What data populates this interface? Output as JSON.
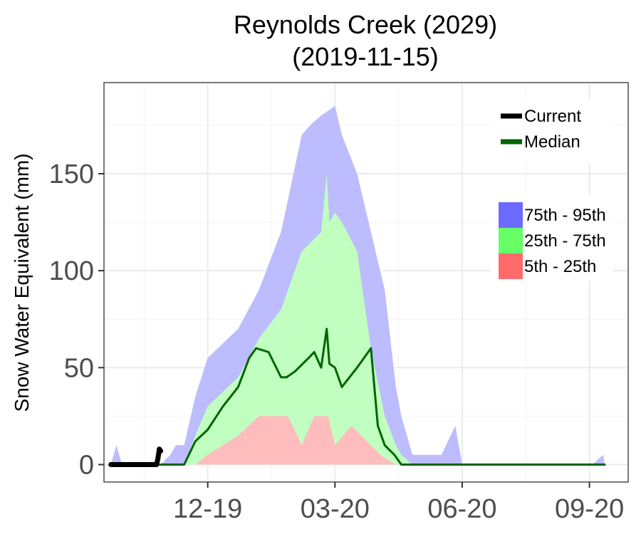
{
  "chart_data": {
    "type": "area",
    "title": "Reynolds Creek (2029)",
    "subtitle": "(2019-11-15)",
    "ylabel": "Snow Water Equivalent (mm)",
    "xlabel": "",
    "x_type": "date",
    "xlim": [
      "2019-10-05",
      "2020-10-18"
    ],
    "ylim": [
      -9,
      197
    ],
    "grid": true,
    "legend_position": "top-right",
    "x_ticks": [
      {
        "date": "2019-12-19",
        "label": "12-19"
      },
      {
        "date": "2020-03-20",
        "label": "03-20"
      },
      {
        "date": "2020-06-20",
        "label": "06-20"
      },
      {
        "date": "2020-09-20",
        "label": "09-20"
      }
    ],
    "y_ticks": [
      0,
      50,
      100,
      150
    ],
    "line_legend": [
      {
        "name": "Current",
        "color": "#000000"
      },
      {
        "name": "Median",
        "color": "#006400"
      }
    ],
    "band_legend": [
      {
        "name": "75th - 95th",
        "color": "#6b6bff"
      },
      {
        "name": "25th - 75th",
        "color": "#66ff66"
      },
      {
        "name": "5th - 25th",
        "color": "#ff6b6b"
      }
    ],
    "bands": {
      "p95": {
        "color": "#bcbcff",
        "x": [
          "2019-10-10",
          "2019-10-14",
          "2019-10-18",
          "2019-11-15",
          "2019-11-22",
          "2019-11-26",
          "2019-12-02",
          "2019-12-10",
          "2019-12-19",
          "2020-01-10",
          "2020-01-25",
          "2020-02-10",
          "2020-02-25",
          "2020-03-02",
          "2020-03-10",
          "2020-03-20",
          "2020-03-25",
          "2020-04-05",
          "2020-04-15",
          "2020-04-25",
          "2020-05-03",
          "2020-05-07",
          "2020-05-15",
          "2020-06-05",
          "2020-06-15",
          "2020-06-20",
          "2020-09-22",
          "2020-09-30",
          "2020-10-01"
        ],
        "y": [
          0,
          10,
          0,
          0,
          5,
          10,
          10,
          35,
          55,
          70,
          90,
          120,
          170,
          175,
          180,
          185,
          170,
          150,
          120,
          90,
          40,
          25,
          5,
          5,
          20,
          0,
          0,
          5,
          0
        ]
      },
      "p75": {
        "color": "#c0ffc0",
        "x": [
          "2019-10-10",
          "2019-12-02",
          "2019-12-10",
          "2019-12-19",
          "2020-01-10",
          "2020-01-25",
          "2020-02-10",
          "2020-02-25",
          "2020-03-10",
          "2020-03-14",
          "2020-03-16",
          "2020-03-20",
          "2020-03-25",
          "2020-04-05",
          "2020-04-15",
          "2020-04-25",
          "2020-05-03",
          "2020-05-07",
          "2020-05-15",
          "2020-10-01"
        ],
        "y": [
          0,
          0,
          15,
          30,
          45,
          65,
          80,
          110,
          120,
          150,
          125,
          130,
          125,
          110,
          60,
          25,
          10,
          5,
          0,
          0
        ]
      },
      "p25": {
        "color": "#ffbcbc",
        "x": [
          "2019-10-10",
          "2019-12-10",
          "2019-12-19",
          "2020-01-10",
          "2020-01-25",
          "2020-02-05",
          "2020-02-15",
          "2020-02-25",
          "2020-03-05",
          "2020-03-15",
          "2020-03-20",
          "2020-04-01",
          "2020-04-15",
          "2020-04-22",
          "2020-05-03",
          "2020-10-01"
        ],
        "y": [
          0,
          0,
          5,
          15,
          25,
          25,
          25,
          10,
          25,
          25,
          10,
          20,
          10,
          5,
          0,
          0
        ]
      },
      "p5": {
        "color": "#ffffff",
        "x": [
          "2019-10-10",
          "2020-10-01"
        ],
        "y": [
          0,
          0
        ]
      }
    },
    "series": [
      {
        "name": "Median",
        "color": "#006400",
        "x": [
          "2019-10-10",
          "2019-12-02",
          "2019-12-10",
          "2019-12-19",
          "2019-12-30",
          "2020-01-10",
          "2020-01-18",
          "2020-01-23",
          "2020-02-01",
          "2020-02-10",
          "2020-02-14",
          "2020-02-20",
          "2020-03-01",
          "2020-03-05",
          "2020-03-10",
          "2020-03-14",
          "2020-03-16",
          "2020-03-20",
          "2020-03-25",
          "2020-04-05",
          "2020-04-15",
          "2020-04-20",
          "2020-04-25",
          "2020-05-02",
          "2020-05-07",
          "2020-10-01"
        ],
        "y": [
          0,
          0,
          12,
          18,
          30,
          40,
          55,
          60,
          58,
          45,
          45,
          48,
          55,
          58,
          50,
          70,
          52,
          50,
          40,
          50,
          60,
          20,
          10,
          5,
          0,
          0
        ]
      },
      {
        "name": "Current",
        "color": "#000000",
        "x": [
          "2019-10-10",
          "2019-11-12",
          "2019-11-13",
          "2019-11-14",
          "2019-11-15"
        ],
        "y": [
          0,
          0,
          3,
          8,
          7
        ]
      }
    ]
  }
}
